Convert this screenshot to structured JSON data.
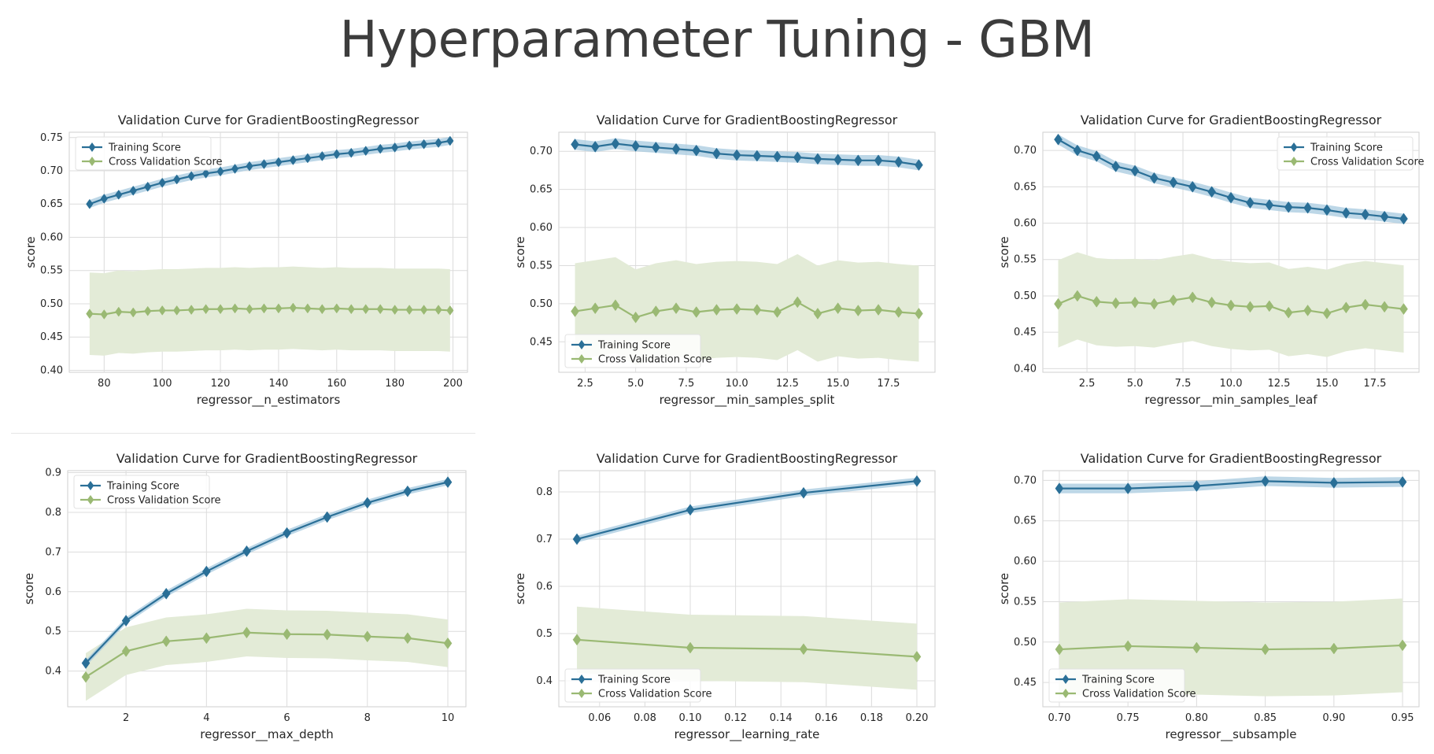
{
  "slide": {
    "title": "Hyperparameter Tuning - GBM"
  },
  "colors": {
    "train": "#2a6f97",
    "train_band": "#a7c9df",
    "cv": "#9ab973",
    "cv_band": "#e3ebd7"
  },
  "chart_data": [
    {
      "type": "line",
      "title": "Validation Curve for GradientBoostingRegressor",
      "xlabel": "regressor__n_estimators",
      "ylabel": "score",
      "xlim": [
        68,
        205
      ],
      "ylim": [
        0.397,
        0.758
      ],
      "xticks": [
        80,
        100,
        120,
        140,
        160,
        180,
        200
      ],
      "xtick_labels": [
        "80",
        "100",
        "120",
        "140",
        "160",
        "180",
        "200"
      ],
      "yticks": [
        0.4,
        0.45,
        0.5,
        0.55,
        0.6,
        0.65,
        0.7,
        0.75
      ],
      "ytick_labels": [
        "0.40",
        "0.45",
        "0.50",
        "0.55",
        "0.60",
        "0.65",
        "0.70",
        "0.75"
      ],
      "legend": {
        "position": "upper-left",
        "entries": [
          "Training Score",
          "Cross Validation Score"
        ]
      },
      "dense": true,
      "x": [
        75,
        80,
        85,
        90,
        95,
        100,
        105,
        110,
        115,
        120,
        125,
        130,
        135,
        140,
        145,
        150,
        155,
        160,
        165,
        170,
        175,
        180,
        185,
        190,
        195,
        199
      ],
      "series": [
        {
          "name": "Training Score",
          "values": [
            0.65,
            0.658,
            0.664,
            0.67,
            0.676,
            0.682,
            0.687,
            0.692,
            0.696,
            0.699,
            0.703,
            0.707,
            0.71,
            0.713,
            0.716,
            0.719,
            0.722,
            0.725,
            0.727,
            0.73,
            0.733,
            0.735,
            0.738,
            0.74,
            0.742,
            0.745
          ],
          "band": 0.006
        },
        {
          "name": "Cross Validation Score",
          "values": [
            0.485,
            0.484,
            0.488,
            0.487,
            0.489,
            0.49,
            0.49,
            0.491,
            0.492,
            0.492,
            0.493,
            0.492,
            0.493,
            0.493,
            0.494,
            0.493,
            0.492,
            0.493,
            0.492,
            0.492,
            0.492,
            0.491,
            0.491,
            0.491,
            0.491,
            0.49
          ],
          "band": 0.062
        }
      ]
    },
    {
      "type": "line",
      "title": "Validation Curve for GradientBoostingRegressor",
      "xlabel": "regressor__min_samples_split",
      "ylabel": "score",
      "xlim": [
        1.2,
        19.8
      ],
      "ylim": [
        0.41,
        0.725
      ],
      "xticks": [
        2.5,
        5.0,
        7.5,
        10.0,
        12.5,
        15.0,
        17.5
      ],
      "xtick_labels": [
        "2.5",
        "5.0",
        "7.5",
        "10.0",
        "12.5",
        "15.0",
        "17.5"
      ],
      "yticks": [
        0.45,
        0.5,
        0.55,
        0.6,
        0.65,
        0.7
      ],
      "ytick_labels": [
        "0.45",
        "0.50",
        "0.55",
        "0.60",
        "0.65",
        "0.70"
      ],
      "legend": {
        "position": "lower-left",
        "entries": [
          "Training Score",
          "Cross Validation Score"
        ]
      },
      "x": [
        2,
        3,
        4,
        5,
        6,
        7,
        8,
        9,
        10,
        11,
        12,
        13,
        14,
        15,
        16,
        17,
        18,
        19
      ],
      "series": [
        {
          "name": "Training Score",
          "values": [
            0.709,
            0.706,
            0.71,
            0.707,
            0.705,
            0.703,
            0.701,
            0.697,
            0.695,
            0.694,
            0.693,
            0.692,
            0.69,
            0.689,
            0.688,
            0.688,
            0.686,
            0.682
          ],
          "band": 0.007
        },
        {
          "name": "Cross Validation Score",
          "values": [
            0.49,
            0.494,
            0.498,
            0.482,
            0.49,
            0.494,
            0.489,
            0.492,
            0.493,
            0.492,
            0.489,
            0.502,
            0.487,
            0.494,
            0.491,
            0.492,
            0.489,
            0.487
          ],
          "band": 0.063
        }
      ]
    },
    {
      "type": "line",
      "title": "Validation Curve for GradientBoostingRegressor",
      "xlabel": "regressor__min_samples_leaf",
      "ylabel": "score",
      "xlim": [
        0.2,
        19.8
      ],
      "ylim": [
        0.395,
        0.725
      ],
      "xticks": [
        2.5,
        5.0,
        7.5,
        10.0,
        12.5,
        15.0,
        17.5
      ],
      "xtick_labels": [
        "2.5",
        "5.0",
        "7.5",
        "10.0",
        "12.5",
        "15.0",
        "17.5"
      ],
      "yticks": [
        0.4,
        0.45,
        0.5,
        0.55,
        0.6,
        0.65,
        0.7
      ],
      "ytick_labels": [
        "0.40",
        "0.45",
        "0.50",
        "0.55",
        "0.60",
        "0.65",
        "0.70"
      ],
      "legend": {
        "position": "upper-right",
        "entries": [
          "Training Score",
          "Cross Validation Score"
        ]
      },
      "x": [
        1,
        2,
        3,
        4,
        5,
        6,
        7,
        8,
        9,
        10,
        11,
        12,
        13,
        14,
        15,
        16,
        17,
        18,
        19
      ],
      "series": [
        {
          "name": "Training Score",
          "values": [
            0.715,
            0.7,
            0.692,
            0.678,
            0.672,
            0.662,
            0.656,
            0.65,
            0.643,
            0.635,
            0.628,
            0.625,
            0.622,
            0.621,
            0.618,
            0.614,
            0.612,
            0.609,
            0.606
          ],
          "band": 0.007
        },
        {
          "name": "Cross Validation Score",
          "values": [
            0.489,
            0.5,
            0.492,
            0.49,
            0.491,
            0.489,
            0.494,
            0.498,
            0.491,
            0.487,
            0.485,
            0.486,
            0.477,
            0.48,
            0.476,
            0.484,
            0.488,
            0.485,
            0.482
          ],
          "band": 0.06
        }
      ]
    },
    {
      "type": "line",
      "title": "Validation Curve for GradientBoostingRegressor",
      "xlabel": "regressor__max_depth",
      "ylabel": "score",
      "xlim": [
        0.55,
        10.45
      ],
      "ylim": [
        0.31,
        0.905
      ],
      "xticks": [
        2,
        4,
        6,
        8,
        10
      ],
      "xtick_labels": [
        "2",
        "4",
        "6",
        "8",
        "10"
      ],
      "yticks": [
        0.4,
        0.5,
        0.6,
        0.7,
        0.8,
        0.9
      ],
      "ytick_labels": [
        "0.4",
        "0.5",
        "0.6",
        "0.7",
        "0.8",
        "0.9"
      ],
      "legend": {
        "position": "upper-left",
        "entries": [
          "Training Score",
          "Cross Validation Score"
        ]
      },
      "x": [
        1,
        2,
        3,
        4,
        5,
        6,
        7,
        8,
        9,
        10
      ],
      "series": [
        {
          "name": "Training Score",
          "values": [
            0.42,
            0.527,
            0.595,
            0.651,
            0.702,
            0.748,
            0.788,
            0.824,
            0.853,
            0.876
          ],
          "band": 0.008
        },
        {
          "name": "Cross Validation Score",
          "values": [
            0.385,
            0.45,
            0.475,
            0.483,
            0.497,
            0.493,
            0.492,
            0.487,
            0.483,
            0.47
          ],
          "band": 0.06
        }
      ]
    },
    {
      "type": "line",
      "title": "Validation Curve for GradientBoostingRegressor",
      "xlabel": "regressor__learning_rate",
      "ylabel": "score",
      "xlim": [
        0.042,
        0.208
      ],
      "ylim": [
        0.345,
        0.845
      ],
      "xticks": [
        0.06,
        0.08,
        0.1,
        0.12,
        0.14,
        0.16,
        0.18,
        0.2
      ],
      "xtick_labels": [
        "0.06",
        "0.08",
        "0.10",
        "0.12",
        "0.14",
        "0.16",
        "0.18",
        "0.20"
      ],
      "yticks": [
        0.4,
        0.5,
        0.6,
        0.7,
        0.8
      ],
      "ytick_labels": [
        "0.4",
        "0.5",
        "0.6",
        "0.7",
        "0.8"
      ],
      "legend": {
        "position": "lower-left",
        "entries": [
          "Training Score",
          "Cross Validation Score"
        ]
      },
      "x": [
        0.05,
        0.1,
        0.15,
        0.2
      ],
      "series": [
        {
          "name": "Training Score",
          "values": [
            0.7,
            0.762,
            0.798,
            0.823
          ],
          "band": 0.007
        },
        {
          "name": "Cross Validation Score",
          "values": [
            0.487,
            0.47,
            0.467,
            0.451
          ],
          "band": 0.07
        }
      ]
    },
    {
      "type": "line",
      "title": "Validation Curve for GradientBoostingRegressor",
      "xlabel": "regressor__subsample",
      "ylabel": "score",
      "xlim": [
        0.688,
        0.962
      ],
      "ylim": [
        0.42,
        0.712
      ],
      "xticks": [
        0.7,
        0.75,
        0.8,
        0.85,
        0.9,
        0.95
      ],
      "xtick_labels": [
        "0.70",
        "0.75",
        "0.80",
        "0.85",
        "0.90",
        "0.95"
      ],
      "yticks": [
        0.45,
        0.5,
        0.55,
        0.6,
        0.65,
        0.7
      ],
      "ytick_labels": [
        "0.45",
        "0.50",
        "0.55",
        "0.60",
        "0.65",
        "0.70"
      ],
      "legend": {
        "position": "lower-left",
        "entries": [
          "Training Score",
          "Cross Validation Score"
        ]
      },
      "x": [
        0.7,
        0.75,
        0.8,
        0.85,
        0.9,
        0.95
      ],
      "series": [
        {
          "name": "Training Score",
          "values": [
            0.69,
            0.69,
            0.693,
            0.699,
            0.697,
            0.698
          ],
          "band": 0.006
        },
        {
          "name": "Cross Validation Score",
          "values": [
            0.491,
            0.495,
            0.493,
            0.491,
            0.492,
            0.496
          ],
          "band": 0.058
        }
      ]
    }
  ]
}
